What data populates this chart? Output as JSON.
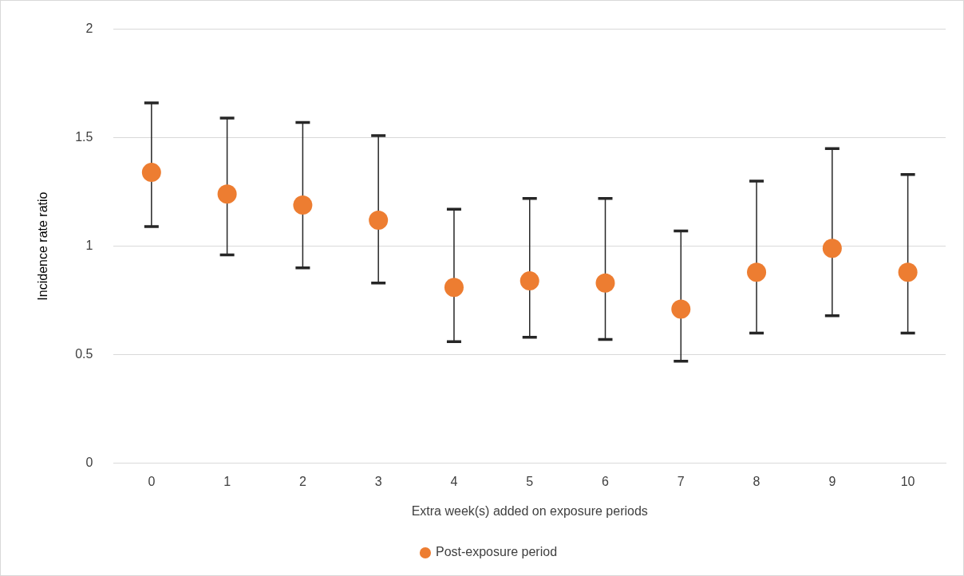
{
  "chart_data": {
    "type": "scatter",
    "xlabel": "Extra week(s) added on exposure periods",
    "ylabel": "Incidence rate ratio",
    "categories": [
      "0",
      "1",
      "2",
      "3",
      "4",
      "5",
      "6",
      "7",
      "8",
      "9",
      "10"
    ],
    "series": [
      {
        "name": "Post-exposure period",
        "color": "#ed7d31",
        "values": [
          1.34,
          1.24,
          1.19,
          1.12,
          0.81,
          0.84,
          0.83,
          0.71,
          0.88,
          0.99,
          0.88
        ],
        "errors": [
          [
            1.09,
            1.66
          ],
          [
            0.96,
            1.59
          ],
          [
            0.9,
            1.57
          ],
          [
            0.83,
            1.51
          ],
          [
            0.56,
            1.17
          ],
          [
            0.58,
            1.22
          ],
          [
            0.57,
            1.22
          ],
          [
            0.47,
            1.07
          ],
          [
            0.6,
            1.3
          ],
          [
            0.68,
            1.45
          ],
          [
            0.6,
            1.33
          ]
        ]
      }
    ],
    "ylim": [
      0,
      2
    ],
    "yticks": [
      0,
      0.5,
      1,
      1.5,
      2
    ],
    "grid": "y",
    "legend": "bottom",
    "marker": "circle"
  }
}
